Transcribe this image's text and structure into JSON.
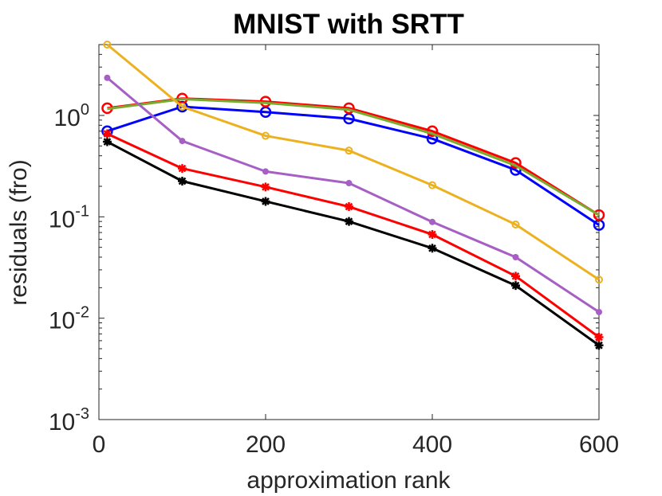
{
  "chart_data": {
    "type": "line",
    "title": "MNIST with SRTT",
    "xlabel": "approximation rank",
    "ylabel": "residuals (fro)",
    "xlim": [
      0,
      600
    ],
    "ylim": [
      0.001,
      5
    ],
    "yscale": "log",
    "grid": false,
    "x_ticks": [
      {
        "value": 0,
        "label": "0"
      },
      {
        "value": 200,
        "label": "200"
      },
      {
        "value": 400,
        "label": "400"
      },
      {
        "value": 600,
        "label": "600"
      }
    ],
    "y_ticks": [
      {
        "value": 0.001,
        "base": "10",
        "exp": "-3"
      },
      {
        "value": 0.01,
        "base": "10",
        "exp": "-2"
      },
      {
        "value": 0.1,
        "base": "10",
        "exp": "-1"
      },
      {
        "value": 1,
        "base": "10",
        "exp": "0"
      }
    ],
    "x": [
      10,
      100,
      200,
      300,
      400,
      500,
      600
    ],
    "series": [
      {
        "color": "#0000ff",
        "marker": "circle-large",
        "values": [
          0.7,
          1.22,
          1.08,
          0.93,
          0.59,
          0.29,
          0.083
        ]
      },
      {
        "color": "#ff0000",
        "marker": "circle-large",
        "values": [
          1.18,
          1.47,
          1.37,
          1.18,
          0.7,
          0.34,
          0.104
        ]
      },
      {
        "color": "#77ac30",
        "marker": "none",
        "values": [
          1.16,
          1.45,
          1.33,
          1.14,
          0.66,
          0.32,
          0.104
        ]
      },
      {
        "color": "#edb120",
        "marker": "circle-small",
        "values": [
          5.0,
          1.22,
          0.63,
          0.45,
          0.205,
          0.084,
          0.024
        ]
      },
      {
        "color": "#a65fc4",
        "marker": "dot",
        "values": [
          2.35,
          0.56,
          0.28,
          0.215,
          0.089,
          0.04,
          0.0115
        ]
      },
      {
        "color": "#000000",
        "marker": "star",
        "values": [
          0.55,
          0.225,
          0.142,
          0.09,
          0.049,
          0.021,
          0.0054
        ]
      },
      {
        "color": "#ff0000",
        "marker": "star",
        "values": [
          0.66,
          0.3,
          0.197,
          0.126,
          0.067,
          0.026,
          0.0065
        ]
      }
    ]
  }
}
